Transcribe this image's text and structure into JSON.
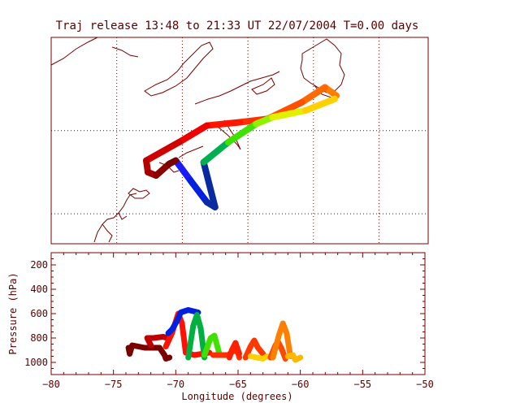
{
  "title": "Traj release 13:48 to 21:33 UT 22/07/2004    T=0.00 days",
  "colors": {
    "axis": "#7a0000",
    "grid": "#7a0000",
    "coast": "#7a0000",
    "text": "#5a0000",
    "background": "#ffffff"
  },
  "chart_data": [
    {
      "type": "map",
      "title": "Traj release 13:48 to 21:33 UT 22/07/2004    T=0.00 days",
      "grid": true,
      "notes": "Trajectory colours run red (start) to blue (end); coastline of north-east North America",
      "trajectory": [
        {
          "lon": -60.6,
          "lat": 49.1,
          "color": "#ff8000"
        },
        {
          "lon": -61.3,
          "lat": 49.6,
          "color": "#ff6a00"
        },
        {
          "lon": -62.7,
          "lat": 48.7,
          "color": "#ff5000"
        },
        {
          "lon": -64.8,
          "lat": 47.7,
          "color": "#ff3000"
        },
        {
          "lon": -66.5,
          "lat": 47.5,
          "color": "#ff1500"
        },
        {
          "lon": -68.5,
          "lat": 47.3,
          "color": "#ee0000"
        },
        {
          "lon": -70.2,
          "lat": 46.3,
          "color": "#d00000"
        },
        {
          "lon": -72.2,
          "lat": 45.2,
          "color": "#b80000"
        },
        {
          "lon": -72.1,
          "lat": 44.5,
          "color": "#a00000"
        },
        {
          "lon": -71.6,
          "lat": 44.3,
          "color": "#8c0000"
        },
        {
          "lon": -70.8,
          "lat": 45.0,
          "color": "#7a0000"
        },
        {
          "lon": -70.4,
          "lat": 45.2,
          "color": "#1a1aff"
        },
        {
          "lon": -69.5,
          "lat": 44.0,
          "color": "#0020e0"
        },
        {
          "lon": -68.5,
          "lat": 42.7,
          "color": "#0a2aa0"
        },
        {
          "lon": -68.0,
          "lat": 42.4,
          "color": "#0a2aa0"
        },
        {
          "lon": -68.7,
          "lat": 45.1,
          "color": "#00b050"
        },
        {
          "lon": -67.2,
          "lat": 46.3,
          "color": "#40e000"
        },
        {
          "lon": -65.5,
          "lat": 47.4,
          "color": "#90f000"
        },
        {
          "lon": -64.5,
          "lat": 47.8,
          "color": "#e0f000"
        },
        {
          "lon": -62.5,
          "lat": 48.2,
          "color": "#ffd000"
        },
        {
          "lon": -60.7,
          "lat": 48.9,
          "color": "#ffb000"
        }
      ]
    },
    {
      "type": "line",
      "xlabel": "Longitude  (degrees)",
      "ylabel": "Pressure  (hPa)",
      "xlim": [
        -80,
        -50
      ],
      "ylim": [
        1100,
        100
      ],
      "xticks": [
        "−80",
        "−75",
        "−70",
        "−65",
        "−60",
        "−55",
        "−50"
      ],
      "yticks": [
        "200",
        "400",
        "600",
        "800",
        "1000"
      ],
      "grid": false,
      "series": [
        {
          "color": "#7a0000",
          "points": [
            [
              -73.8,
              880
            ],
            [
              -73.7,
              930
            ],
            [
              -73.5,
              860
            ],
            [
              -72.5,
              880
            ],
            [
              -71.3,
              880
            ],
            [
              -70.9,
              940
            ],
            [
              -70.8,
              970
            ],
            [
              -70.5,
              960
            ]
          ]
        },
        {
          "color": "#c00000",
          "points": [
            [
              -72.0,
              860
            ],
            [
              -72.3,
              800
            ],
            [
              -71.8,
              800
            ],
            [
              -71.0,
              790
            ],
            [
              -70.7,
              800
            ]
          ]
        },
        {
          "color": "#ff1000",
          "points": [
            [
              -70.8,
              870
            ],
            [
              -70.3,
              760
            ],
            [
              -69.8,
              600
            ],
            [
              -69.5,
              680
            ],
            [
              -69.2,
              920
            ],
            [
              -68.5,
              940
            ],
            [
              -67.3,
              920
            ]
          ]
        },
        {
          "color": "#0020e0",
          "points": [
            [
              -70.6,
              760
            ],
            [
              -70.3,
              730
            ],
            [
              -69.9,
              660
            ],
            [
              -69.6,
              590
            ],
            [
              -69.0,
              570
            ],
            [
              -68.2,
              590
            ]
          ]
        },
        {
          "color": "#00b040",
          "points": [
            [
              -69.0,
              960
            ],
            [
              -68.6,
              700
            ],
            [
              -68.3,
              610
            ],
            [
              -68.0,
              720
            ],
            [
              -67.7,
              960
            ]
          ]
        },
        {
          "color": "#40e000",
          "points": [
            [
              -67.7,
              940
            ],
            [
              -67.2,
              800
            ],
            [
              -66.9,
              780
            ],
            [
              -66.5,
              930
            ]
          ]
        },
        {
          "color": "#ff3000",
          "points": [
            [
              -67.0,
              940
            ],
            [
              -65.8,
              940
            ],
            [
              -65.3,
              900
            ],
            [
              -65.0,
              920
            ],
            [
              -64.9,
              960
            ]
          ]
        },
        {
          "color": "#ff2000",
          "points": [
            [
              -65.7,
              960
            ],
            [
              -65.5,
              900
            ],
            [
              -65.2,
              840
            ],
            [
              -64.9,
              930
            ]
          ]
        },
        {
          "color": "#ff3800",
          "points": [
            [
              -64.4,
              960
            ],
            [
              -64.0,
              870
            ],
            [
              -63.7,
              820
            ],
            [
              -63.4,
              880
            ],
            [
              -63.0,
              930
            ]
          ]
        },
        {
          "color": "#ffd000",
          "points": [
            [
              -64.0,
              950
            ],
            [
              -63.0,
              970
            ],
            [
              -62.7,
              950
            ],
            [
              -62.2,
              960
            ]
          ]
        },
        {
          "color": "#ff4800",
          "points": [
            [
              -62.4,
              960
            ],
            [
              -62.0,
              860
            ],
            [
              -61.8,
              830
            ],
            [
              -61.5,
              890
            ],
            [
              -61.2,
              970
            ]
          ]
        },
        {
          "color": "#ff8000",
          "points": [
            [
              -62.2,
              960
            ],
            [
              -61.7,
              770
            ],
            [
              -61.4,
              680
            ],
            [
              -61.1,
              760
            ],
            [
              -60.8,
              950
            ]
          ]
        },
        {
          "color": "#ffb800",
          "points": [
            [
              -61.0,
              950
            ],
            [
              -60.6,
              940
            ],
            [
              -60.4,
              980
            ],
            [
              -60.0,
              960
            ]
          ]
        }
      ]
    }
  ]
}
